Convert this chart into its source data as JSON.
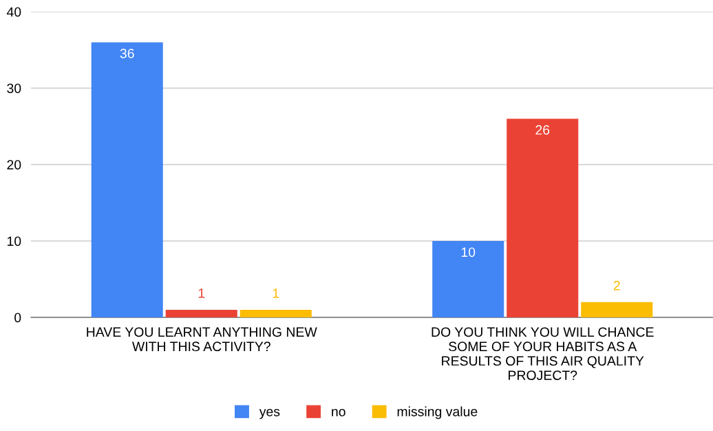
{
  "chart_data": {
    "type": "bar",
    "categories": [
      "HAVE YOU LEARNT ANYTHING NEW WITH THIS ACTIVITY?",
      "DO YOU THINK YOU WILL CHANCE SOME OF YOUR HABITS AS A RESULTS OF THIS AIR QUALITY PROJECT?"
    ],
    "series": [
      {
        "name": "yes",
        "color": "#4285f4",
        "values": [
          36,
          10
        ]
      },
      {
        "name": "no",
        "color": "#ea4335",
        "values": [
          1,
          26
        ]
      },
      {
        "name": "missing value",
        "color": "#fbbc04",
        "values": [
          1,
          2
        ]
      }
    ],
    "ylim": [
      0,
      40
    ],
    "yticks": [
      0,
      10,
      20,
      30,
      40
    ],
    "grid": "y",
    "legend": "bottom",
    "data_labels": true
  }
}
